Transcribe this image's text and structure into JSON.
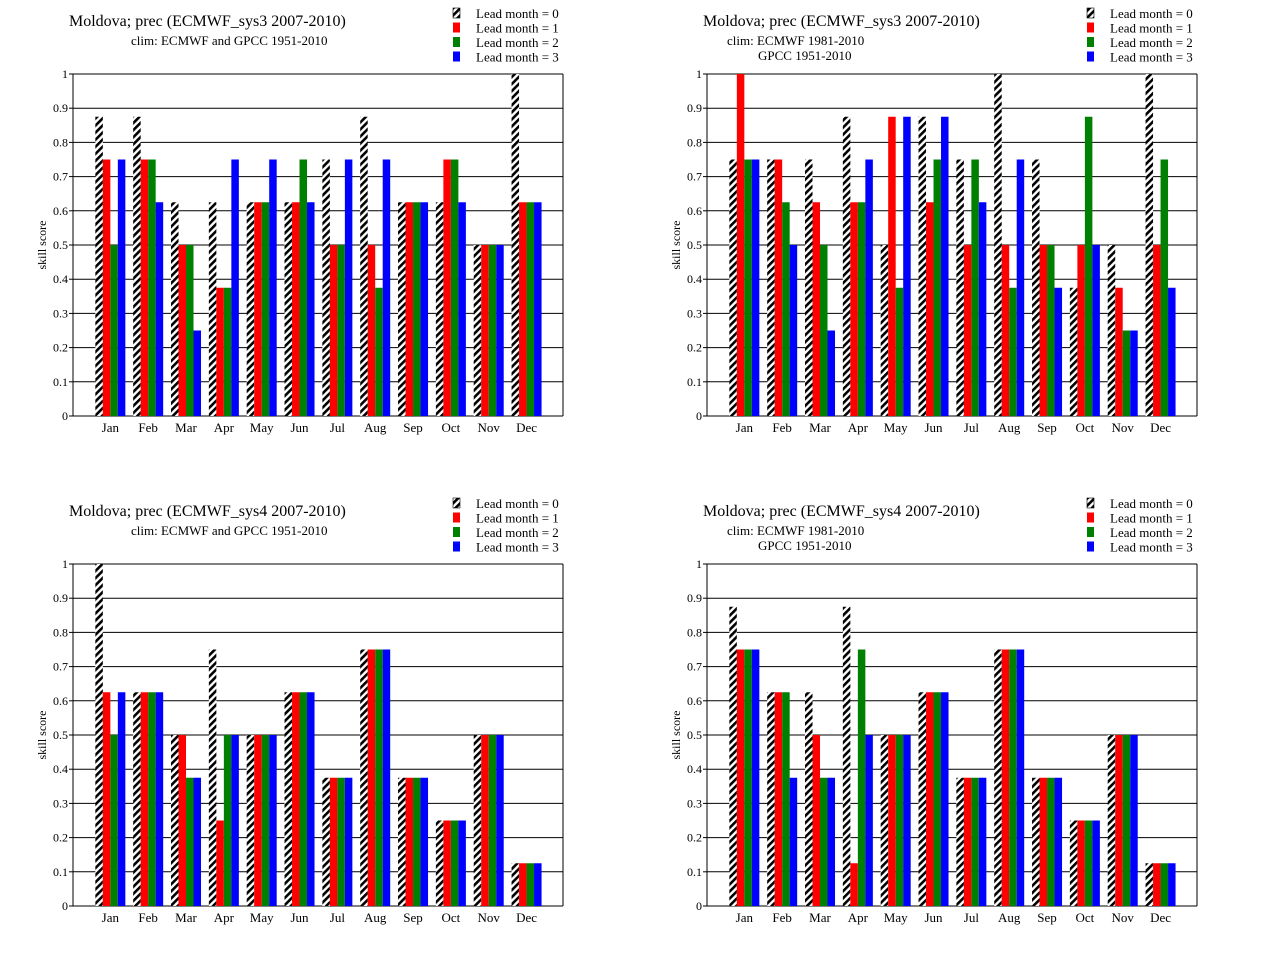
{
  "chart_data": [
    {
      "type": "bar",
      "title": "Moldova; prec (ECMWF_sys3 2007-2010)",
      "subtitle": [
        "clim: ECMWF and GPCC 1951-2010"
      ],
      "ylabel": "skill  score",
      "xlabel": "",
      "ylim": [
        0,
        1
      ],
      "yticks": [
        "0",
        "0.1",
        "0.2",
        "0.3",
        "0.4",
        "0.5",
        "0.6",
        "0.7",
        "0.8",
        "0.9",
        "1"
      ],
      "grid": true,
      "legend_position": "top-right",
      "categories": [
        "Jan",
        "Feb",
        "Mar",
        "Apr",
        "May",
        "Jun",
        "Jul",
        "Aug",
        "Sep",
        "Oct",
        "Nov",
        "Dec"
      ],
      "series": [
        {
          "name": "Lead month = 0",
          "color": "#000000",
          "pattern": "hatched",
          "values": [
            0.875,
            0.875,
            0.625,
            0.625,
            0.625,
            0.625,
            0.75,
            0.875,
            0.625,
            0.625,
            0.5,
            1.0
          ]
        },
        {
          "name": "Lead month = 1",
          "color": "#ff0000",
          "values": [
            0.75,
            0.75,
            0.5,
            0.375,
            0.625,
            0.625,
            0.5,
            0.5,
            0.625,
            0.75,
            0.5,
            0.625
          ]
        },
        {
          "name": "Lead month = 2",
          "color": "#008000",
          "values": [
            0.5,
            0.75,
            0.5,
            0.375,
            0.625,
            0.75,
            0.5,
            0.375,
            0.625,
            0.75,
            0.5,
            0.625
          ]
        },
        {
          "name": "Lead month = 3",
          "color": "#0000ff",
          "values": [
            0.75,
            0.625,
            0.25,
            0.75,
            0.75,
            0.625,
            0.75,
            0.75,
            0.625,
            0.625,
            0.5,
            0.625
          ]
        }
      ]
    },
    {
      "type": "bar",
      "title": "Moldova; prec (ECMWF_sys3 2007-2010)",
      "subtitle": [
        "clim: ECMWF 1981-2010",
        "GPCC 1951-2010"
      ],
      "ylabel": "skill  score",
      "xlabel": "",
      "ylim": [
        0,
        1
      ],
      "yticks": [
        "0",
        "0.1",
        "0.2",
        "0.3",
        "0.4",
        "0.5",
        "0.6",
        "0.7",
        "0.8",
        "0.9",
        "1"
      ],
      "grid": true,
      "legend_position": "top-right",
      "categories": [
        "Jan",
        "Feb",
        "Mar",
        "Apr",
        "May",
        "Jun",
        "Jul",
        "Aug",
        "Sep",
        "Oct",
        "Nov",
        "Dec"
      ],
      "series": [
        {
          "name": "Lead month = 0",
          "color": "#000000",
          "pattern": "hatched",
          "values": [
            0.75,
            0.75,
            0.75,
            0.875,
            0.5,
            0.875,
            0.75,
            1.0,
            0.75,
            0.375,
            0.5,
            1.0
          ]
        },
        {
          "name": "Lead month = 1",
          "color": "#ff0000",
          "values": [
            1.0,
            0.75,
            0.625,
            0.625,
            0.875,
            0.625,
            0.5,
            0.5,
            0.5,
            0.5,
            0.375,
            0.5
          ]
        },
        {
          "name": "Lead month = 2",
          "color": "#008000",
          "values": [
            0.75,
            0.625,
            0.5,
            0.625,
            0.375,
            0.75,
            0.75,
            0.375,
            0.5,
            0.875,
            0.25,
            0.75
          ]
        },
        {
          "name": "Lead month = 3",
          "color": "#0000ff",
          "values": [
            0.75,
            0.5,
            0.25,
            0.75,
            0.875,
            0.875,
            0.625,
            0.75,
            0.375,
            0.5,
            0.25,
            0.375
          ]
        }
      ]
    },
    {
      "type": "bar",
      "title": "Moldova; prec (ECMWF_sys4 2007-2010)",
      "subtitle": [
        "clim: ECMWF and GPCC 1951-2010"
      ],
      "ylabel": "skill  score",
      "xlabel": "",
      "ylim": [
        0,
        1
      ],
      "yticks": [
        "0",
        "0.1",
        "0.2",
        "0.3",
        "0.4",
        "0.5",
        "0.6",
        "0.7",
        "0.8",
        "0.9",
        "1"
      ],
      "grid": true,
      "legend_position": "top-right",
      "categories": [
        "Jan",
        "Feb",
        "Mar",
        "Apr",
        "May",
        "Jun",
        "Jul",
        "Aug",
        "Sep",
        "Oct",
        "Nov",
        "Dec"
      ],
      "series": [
        {
          "name": "Lead month = 0",
          "color": "#000000",
          "pattern": "hatched",
          "values": [
            1.0,
            0.625,
            0.5,
            0.75,
            0.5,
            0.625,
            0.375,
            0.75,
            0.375,
            0.25,
            0.5,
            0.125
          ]
        },
        {
          "name": "Lead month = 1",
          "color": "#ff0000",
          "values": [
            0.625,
            0.625,
            0.5,
            0.25,
            0.5,
            0.625,
            0.375,
            0.75,
            0.375,
            0.25,
            0.5,
            0.125
          ]
        },
        {
          "name": "Lead month = 2",
          "color": "#008000",
          "values": [
            0.5,
            0.625,
            0.375,
            0.5,
            0.5,
            0.625,
            0.375,
            0.75,
            0.375,
            0.25,
            0.5,
            0.125
          ]
        },
        {
          "name": "Lead month = 3",
          "color": "#0000ff",
          "values": [
            0.625,
            0.625,
            0.375,
            0.5,
            0.5,
            0.625,
            0.375,
            0.75,
            0.375,
            0.25,
            0.5,
            0.125
          ]
        }
      ]
    },
    {
      "type": "bar",
      "title": "Moldova; prec (ECMWF_sys4 2007-2010)",
      "subtitle": [
        "clim: ECMWF 1981-2010",
        "GPCC 1951-2010"
      ],
      "ylabel": "skill  score",
      "xlabel": "",
      "ylim": [
        0,
        1
      ],
      "yticks": [
        "0",
        "0.1",
        "0.2",
        "0.3",
        "0.4",
        "0.5",
        "0.6",
        "0.7",
        "0.8",
        "0.9",
        "1"
      ],
      "grid": true,
      "legend_position": "top-right",
      "categories": [
        "Jan",
        "Feb",
        "Mar",
        "Apr",
        "May",
        "Jun",
        "Jul",
        "Aug",
        "Sep",
        "Oct",
        "Nov",
        "Dec"
      ],
      "series": [
        {
          "name": "Lead month = 0",
          "color": "#000000",
          "pattern": "hatched",
          "values": [
            0.875,
            0.625,
            0.625,
            0.875,
            0.5,
            0.625,
            0.375,
            0.75,
            0.375,
            0.25,
            0.5,
            0.125
          ]
        },
        {
          "name": "Lead month = 1",
          "color": "#ff0000",
          "values": [
            0.75,
            0.625,
            0.5,
            0.125,
            0.5,
            0.625,
            0.375,
            0.75,
            0.375,
            0.25,
            0.5,
            0.125
          ]
        },
        {
          "name": "Lead month = 2",
          "color": "#008000",
          "values": [
            0.75,
            0.625,
            0.375,
            0.75,
            0.5,
            0.625,
            0.375,
            0.75,
            0.375,
            0.25,
            0.5,
            0.125
          ]
        },
        {
          "name": "Lead month = 3",
          "color": "#0000ff",
          "values": [
            0.75,
            0.375,
            0.375,
            0.5,
            0.5,
            0.625,
            0.375,
            0.75,
            0.375,
            0.25,
            0.5,
            0.125
          ]
        }
      ]
    }
  ]
}
